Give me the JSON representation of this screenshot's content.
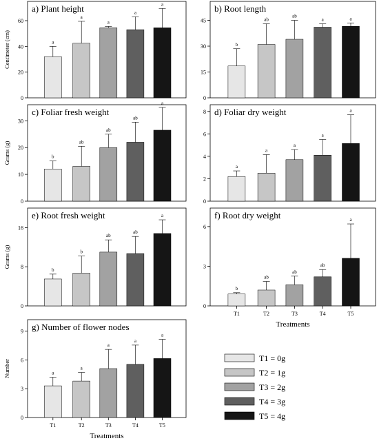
{
  "chart_data": [
    {
      "type": "bar",
      "title": "a) Plant height",
      "ylabel": "Centimeter (cm)",
      "xlabel": "",
      "categories": [
        "T1",
        "T2",
        "T3",
        "T4",
        "T5"
      ],
      "values": [
        32,
        42.5,
        54.5,
        53,
        54.5
      ],
      "errors": [
        8,
        17,
        1,
        10,
        15
      ],
      "letters": [
        "a",
        "a",
        "a",
        "a",
        "a"
      ],
      "ylim": [
        0,
        75
      ],
      "yticks": [
        "0",
        "20",
        "40",
        "60"
      ],
      "show_x_ticklabels": false
    },
    {
      "type": "bar",
      "title": "b) Root length",
      "ylabel": "",
      "xlabel": "",
      "categories": [
        "T1",
        "T2",
        "T3",
        "T4",
        "T5"
      ],
      "values": [
        18.5,
        31,
        34,
        41,
        41.5
      ],
      "errors": [
        10,
        12,
        11,
        2,
        2
      ],
      "letters": [
        "b",
        "ab",
        "ab",
        "a",
        "a"
      ],
      "ylim": [
        0,
        56
      ],
      "yticks": [
        "0",
        "15",
        "30",
        "45"
      ],
      "show_x_ticklabels": false
    },
    {
      "type": "bar",
      "title": "c) Foliar fresh weight",
      "ylabel": "Grams (g)",
      "xlabel": "",
      "categories": [
        "T1",
        "T2",
        "T3",
        "T4",
        "T5"
      ],
      "values": [
        12,
        13,
        20,
        22,
        26.5
      ],
      "errors": [
        3,
        7.5,
        5,
        7.5,
        8.5
      ],
      "letters": [
        "b",
        "ab",
        "ab",
        "ab",
        "a"
      ],
      "ylim": [
        0,
        36
      ],
      "yticks": [
        "0",
        "10",
        "20",
        "30"
      ],
      "show_x_ticklabels": false
    },
    {
      "type": "bar",
      "title": "d) Foliar dry weight",
      "ylabel": "",
      "xlabel": "",
      "categories": [
        "T1",
        "T2",
        "T3",
        "T4",
        "T5"
      ],
      "values": [
        2.2,
        2.5,
        3.7,
        4.1,
        5.15
      ],
      "errors": [
        0.5,
        1.65,
        0.9,
        1.4,
        2.55
      ],
      "letters": [
        "a",
        "a",
        "a",
        "a",
        "a"
      ],
      "ylim": [
        0,
        8.6
      ],
      "yticks": [
        "0",
        "2",
        "4",
        "6",
        "8"
      ],
      "show_x_ticklabels": false
    },
    {
      "type": "bar",
      "title": "e) Root fresh weight",
      "ylabel": "Grams (g)",
      "xlabel": "",
      "categories": [
        "T1",
        "T2",
        "T3",
        "T4",
        "T5"
      ],
      "values": [
        5.5,
        6.7,
        11,
        10.7,
        14.8
      ],
      "errors": [
        1,
        3.5,
        2.5,
        3.5,
        2.8
      ],
      "letters": [
        "b",
        "b",
        "ab",
        "ab",
        "a"
      ],
      "ylim": [
        0,
        20
      ],
      "yticks": [
        "0",
        "8",
        "16"
      ],
      "show_x_ticklabels": false
    },
    {
      "type": "bar",
      "title": "f) Root dry weight",
      "ylabel": "",
      "xlabel": "Treatments",
      "categories": [
        "T1",
        "T2",
        "T3",
        "T4",
        "T5"
      ],
      "values": [
        0.9,
        1.2,
        1.6,
        2.2,
        3.6
      ],
      "errors": [
        0.1,
        0.65,
        0.65,
        0.55,
        2.6
      ],
      "letters": [
        "b",
        "ab",
        "ab",
        "ab",
        "a"
      ],
      "ylim": [
        0,
        7.4
      ],
      "yticks": [
        "0",
        "3",
        "6"
      ],
      "show_x_ticklabels": true
    },
    {
      "type": "bar",
      "title": "g) Number of flower nodes",
      "ylabel": "Number",
      "xlabel": "Treatments",
      "categories": [
        "T1",
        "T2",
        "T3",
        "T4",
        "T5"
      ],
      "values": [
        3.3,
        3.8,
        5.1,
        5.55,
        6.15
      ],
      "errors": [
        0.9,
        0.9,
        2,
        2,
        2
      ],
      "letters": [
        "a",
        "a",
        "a",
        "a",
        "a"
      ],
      "ylim": [
        0,
        10.2
      ],
      "yticks": [
        "0",
        "3",
        "6",
        "9"
      ],
      "show_x_ticklabels": true
    }
  ],
  "bar_colors": [
    "#e6e6e6",
    "#c6c6c6",
    "#a2a2a2",
    "#5f5f5f",
    "#151515"
  ],
  "legend": [
    {
      "label": "T1 = 0g",
      "color": "#e6e6e6"
    },
    {
      "label": "T2 = 1g",
      "color": "#c6c6c6"
    },
    {
      "label": "T3 = 2g",
      "color": "#a2a2a2"
    },
    {
      "label": "T4 = 3g",
      "color": "#5f5f5f"
    },
    {
      "label": "T5 = 4g",
      "color": "#151515"
    }
  ]
}
